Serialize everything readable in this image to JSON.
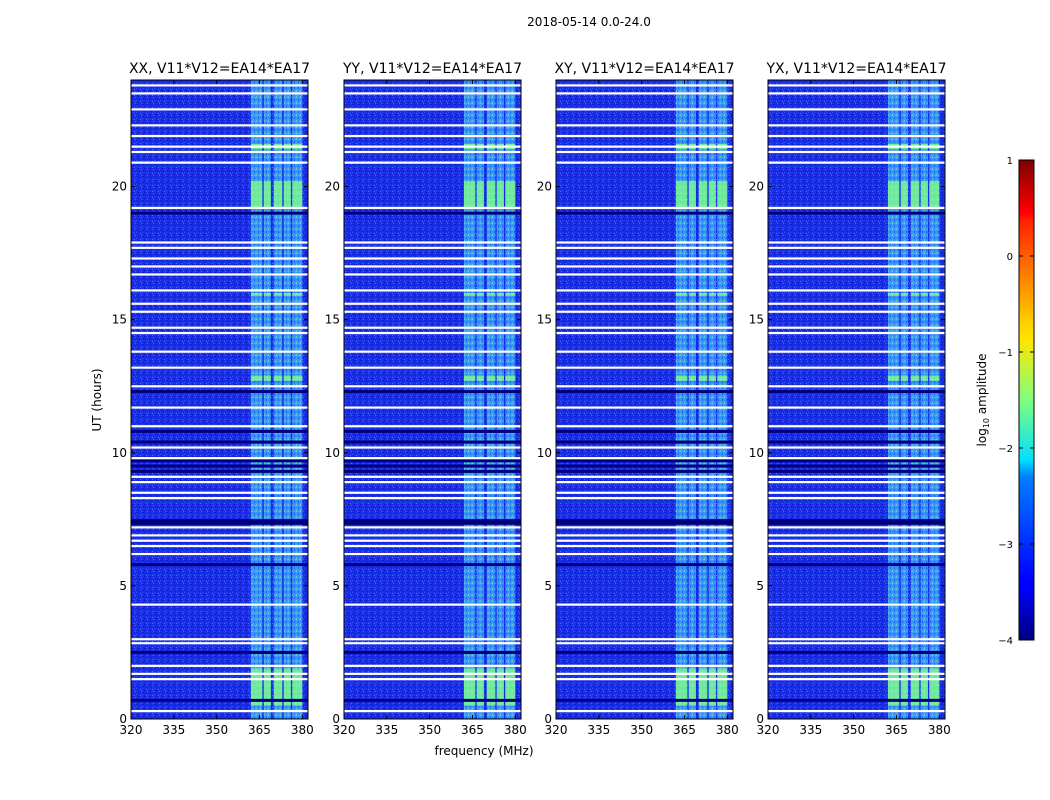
{
  "chart_data": {
    "type": "heatmap",
    "title": "2018-05-14 0.0-24.0",
    "xlabel": "frequency (MHz)",
    "ylabel": "UT (hours)",
    "xlim": [
      320,
      382
    ],
    "ylim": [
      0,
      24
    ],
    "x_ticks": [
      "320",
      "335",
      "350",
      "365",
      "380"
    ],
    "x_tick_values": [
      320,
      335,
      350,
      365,
      380
    ],
    "y_ticks": [
      "0",
      "5",
      "10",
      "15",
      "20"
    ],
    "y_tick_values": [
      0,
      5,
      10,
      15,
      20
    ],
    "panels": [
      {
        "title": "XX, V11*V12=EA14*EA17",
        "pol": "XX"
      },
      {
        "title": "YY, V11*V12=EA14*EA17",
        "pol": "YY"
      },
      {
        "title": "XY, V11*V12=EA14*EA17",
        "pol": "XY"
      },
      {
        "title": "YX, V11*V12=EA14*EA17",
        "pol": "YX"
      }
    ],
    "colorbar": {
      "label": "log10 amplitude",
      "label_main": "log",
      "label_sub": "10",
      "label_rest": " amplitude",
      "min": -4,
      "max": 1,
      "ticks": [
        "1",
        "0",
        "−1",
        "−2",
        "−3",
        "−4"
      ],
      "tick_values": [
        1,
        0,
        -1,
        -2,
        -3,
        -4
      ],
      "colormap": "jet"
    },
    "background_level": -3.3,
    "rfi_bands_mhz": [
      [
        362,
        366
      ],
      [
        366.5,
        369
      ],
      [
        370,
        373
      ],
      [
        373.5,
        376
      ],
      [
        376.5,
        380
      ]
    ],
    "flagged_hours": [
      0.3,
      1.5,
      1.7,
      2.0,
      2.85,
      3.0,
      4.3,
      6.2,
      6.5,
      6.7,
      6.9,
      7.2,
      8.3,
      8.5,
      8.9,
      9.1,
      9.8,
      10.2,
      11.0,
      11.7,
      12.5,
      13.2,
      13.8,
      14.5,
      14.7,
      15.3,
      15.6,
      16.1,
      16.7,
      17.0,
      17.3,
      17.7,
      17.9,
      19.2,
      20.9,
      21.3,
      21.5,
      21.9,
      22.3,
      22.9,
      23.5,
      23.8
    ],
    "dark_hours": [
      0.7,
      2.5,
      5.8,
      7.35,
      7.45,
      9.3,
      9.5,
      9.7,
      10.4,
      10.8,
      12.3,
      19.0
    ],
    "strong_rfi_hours": [
      [
        0.5,
        1.9
      ],
      [
        12.7,
        12.9
      ],
      [
        19.2,
        20.2
      ],
      [
        21.4,
        21.6
      ],
      [
        15.9,
        16.0
      ]
    ]
  }
}
